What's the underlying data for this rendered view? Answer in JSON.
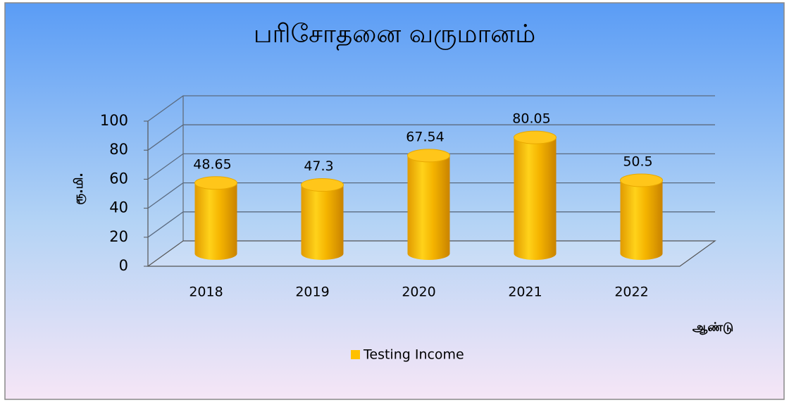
{
  "chart_data": {
    "type": "bar3d",
    "title": "பரிசோதனை வருமானம்",
    "y_label": "ரூ.மி.",
    "x_label": "ஆண்டு",
    "categories": [
      "2018",
      "2019",
      "2020",
      "2021",
      "2022"
    ],
    "series": [
      {
        "name": "Testing Income",
        "color": "#ffc000",
        "values": [
          48.65,
          47.3,
          67.54,
          80.05,
          50.5
        ]
      }
    ],
    "ylim": [
      0,
      100
    ],
    "yticks": [
      0,
      20,
      40,
      60,
      80,
      100
    ],
    "grid": true,
    "legend": "bottom"
  }
}
